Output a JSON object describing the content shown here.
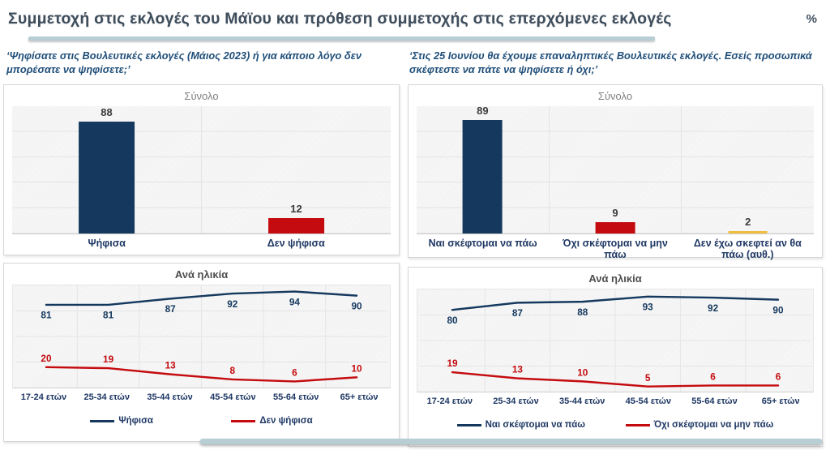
{
  "header": {
    "title": "Συμμετοχή στις εκλογές του Μάϊου και πρόθεση συμμετοχής στις επερχόμενες εκλογές",
    "unit": "%"
  },
  "questions": {
    "left": "‘Ψηφίσατε στις Βουλευτικές εκλογές (Μάιος 2023) ή για κάποιο λόγο δεν μπορέσατε να ψηφίσετε;’",
    "right": "‘Στις 25 Ιουνίου θα έχουμε επαναληπτικές Βουλευτικές εκλογές. Εσείς προσωπικά σκέφτεστε να πάτε να ψηφίσετε ή όχι;’"
  },
  "colors": {
    "navy": "#15395E",
    "red": "#C40B0F",
    "yellow": "#EFBE3F",
    "accent_teal": "#B7CED5",
    "grid": "#E4E4E4"
  },
  "chart_data": [
    {
      "type": "bar",
      "title": "Σύνολο",
      "categories": [
        "Ψήφισα",
        "Δεν ψήφισα"
      ],
      "values": [
        88,
        12
      ],
      "bar_colors": [
        "#15395E",
        "#C40B0F"
      ],
      "ylim": [
        0,
        100
      ],
      "grid": true,
      "legend_position": "none"
    },
    {
      "type": "bar",
      "title": "Σύνολο",
      "categories": [
        "Ναι σκέφτομαι να πάω",
        "Όχι σκέφτομαι να μην πάω",
        "Δεν έχω σκεφτεί αν θα πάω (αυθ.)"
      ],
      "values": [
        89,
        9,
        2
      ],
      "bar_colors": [
        "#15395E",
        "#C40B0F",
        "#EFBE3F"
      ],
      "ylim": [
        0,
        100
      ],
      "grid": true,
      "legend_position": "none"
    },
    {
      "type": "line",
      "title": "Ανά ηλικία",
      "categories": [
        "17-24 ετών",
        "25-34 ετών",
        "35-44 ετών",
        "45-54 ετών",
        "55-64 ετών",
        "65+ ετών"
      ],
      "series": [
        {
          "name": "Ψήφισα",
          "values": [
            81,
            81,
            87,
            92,
            94,
            90
          ],
          "color": "#15395E",
          "label_side": "below"
        },
        {
          "name": "Δεν ψήφισα",
          "values": [
            20,
            19,
            13,
            8,
            6,
            10
          ],
          "color": "#C40B0F",
          "label_side": "above"
        }
      ],
      "ylim": [
        0,
        100
      ],
      "grid": true,
      "legend_position": "bottom"
    },
    {
      "type": "line",
      "title": "Ανά ηλικία",
      "categories": [
        "17-24 ετών",
        "25-34 ετών",
        "35-44 ετών",
        "45-54 ετών",
        "55-64 ετών",
        "65+ ετών"
      ],
      "series": [
        {
          "name": "Ναι σκέφτομαι να πάω",
          "values": [
            80,
            87,
            88,
            93,
            92,
            90
          ],
          "color": "#15395E",
          "label_side": "below"
        },
        {
          "name": "Όχι σκέφτομαι να μην πάω",
          "values": [
            19,
            13,
            10,
            5,
            6,
            6
          ],
          "color": "#C40B0F",
          "label_side": "above"
        }
      ],
      "ylim": [
        0,
        100
      ],
      "grid": true,
      "legend_position": "bottom"
    }
  ]
}
